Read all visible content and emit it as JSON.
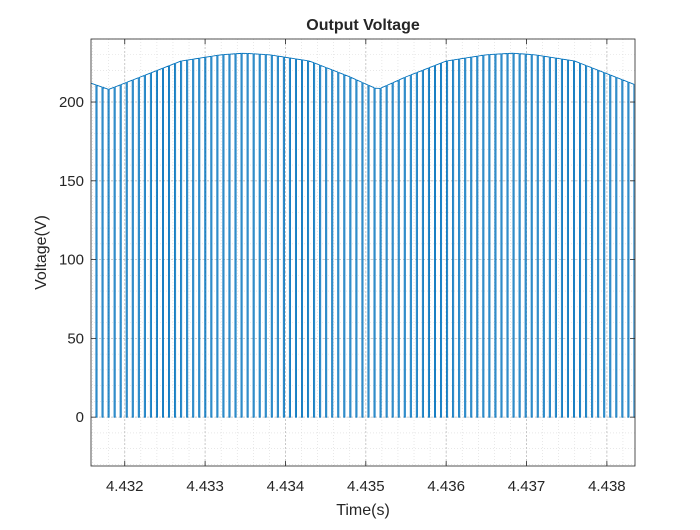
{
  "chart_data": {
    "type": "line",
    "title": "Output Voltage",
    "xlabel": "Time(s)",
    "ylabel": "Voltage(V)",
    "xlim": [
      4.43158,
      4.43835
    ],
    "ylim": [
      -31,
      240
    ],
    "x_ticks": [
      4.432,
      4.433,
      4.434,
      4.435,
      4.436,
      4.437,
      4.438
    ],
    "x_tick_labels": [
      "4.432",
      "4.433",
      "4.434",
      "4.435",
      "4.436",
      "4.437",
      "4.438"
    ],
    "y_ticks": [
      0,
      50,
      100,
      150,
      200
    ],
    "y_tick_labels": [
      "0",
      "50",
      "100",
      "150",
      "200"
    ],
    "grid": "on (major and minor, dotted)",
    "series": [
      {
        "color": "#0072bd",
        "pulse_low": 0,
        "pulse_count": 90,
        "duty_cycle": 0.82,
        "pulse_high_envelope": {
          "x": [
            4.43158,
            4.4318,
            4.4322,
            4.4327,
            4.4332,
            4.43348,
            4.4338,
            4.4343,
            4.4348,
            4.43515,
            4.4355,
            4.436,
            4.4365,
            4.43682,
            4.4371,
            4.4376,
            4.43835
          ],
          "y": [
            212,
            208,
            216,
            226,
            230,
            231,
            230,
            226,
            216,
            208,
            216,
            226,
            230,
            231,
            230,
            226,
            211
          ]
        }
      }
    ]
  }
}
